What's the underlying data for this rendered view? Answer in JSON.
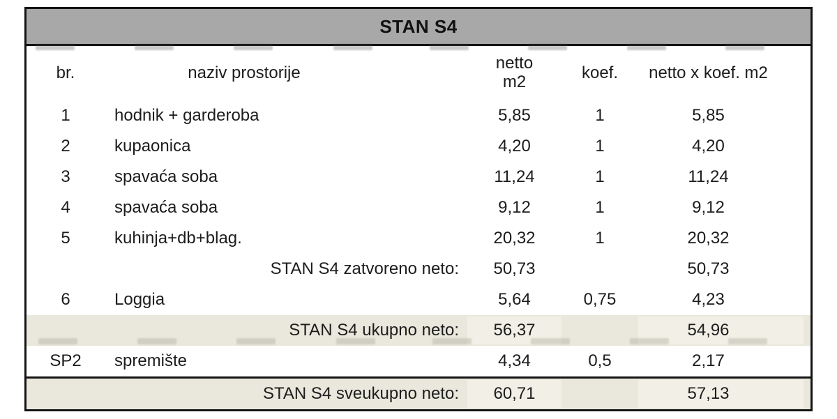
{
  "title": "STAN S4",
  "columns": {
    "br": "br.",
    "naziv": "naziv prostorije",
    "netto_line1": "netto",
    "netto_line2": "m2",
    "koef": "koef.",
    "produkt": "netto x koef. m2"
  },
  "rows": [
    {
      "br": "1",
      "naziv": "hodnik + garderoba",
      "netto": "5,85",
      "koef": "1",
      "produkt": "5,85",
      "kind": "room",
      "shaded": false
    },
    {
      "br": "2",
      "naziv": "kupaonica",
      "netto": "4,20",
      "koef": "1",
      "produkt": "4,20",
      "kind": "room",
      "shaded": false
    },
    {
      "br": "3",
      "naziv": "spavaća soba",
      "netto": "11,24",
      "koef": "1",
      "produkt": "11,24",
      "kind": "room",
      "shaded": false
    },
    {
      "br": "4",
      "naziv": "spavaća soba",
      "netto": "9,12",
      "koef": "1",
      "produkt": "9,12",
      "kind": "room",
      "shaded": false
    },
    {
      "br": "5",
      "naziv": "kuhinja+db+blag.",
      "netto": "20,32",
      "koef": "1",
      "produkt": "20,32",
      "kind": "room",
      "shaded": false
    },
    {
      "br": "",
      "naziv": "STAN S4 zatvoreno neto:",
      "netto": "50,73",
      "koef": "",
      "produkt": "50,73",
      "kind": "subtotal",
      "shaded": false
    },
    {
      "br": "6",
      "naziv": "Loggia",
      "netto": "5,64",
      "koef": "0,75",
      "produkt": "4,23",
      "kind": "room",
      "shaded": false
    },
    {
      "br": "",
      "naziv": "STAN S4 ukupno neto:",
      "netto": "56,37",
      "koef": "",
      "produkt": "54,96",
      "kind": "subtotal",
      "shaded": true
    },
    {
      "br": "SP2",
      "naziv": "spremište",
      "netto": "4,34",
      "koef": "0,5",
      "produkt": "2,17",
      "kind": "room",
      "shaded": false
    },
    {
      "br": "",
      "naziv": "STAN S4 sveukupno neto:",
      "netto": "60,71",
      "koef": "",
      "produkt": "57,13",
      "kind": "total",
      "shaded": true
    }
  ],
  "colors": {
    "header_bg": "#a8a8a8",
    "shaded_row_bg": "#eae8dc",
    "shaded_cell_bg": "#f2f0e6",
    "border": "#141414",
    "text": "#1d1d1d",
    "page_bg": "#ffffff"
  }
}
